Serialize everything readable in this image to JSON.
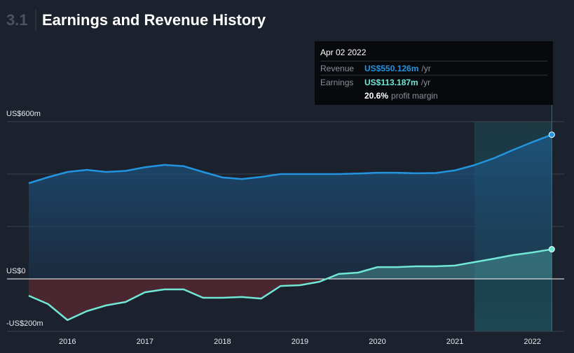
{
  "header": {
    "section": "3.1"
  },
  "chart_data": {
    "type": "line",
    "title": "Earnings and Revenue History",
    "x": [
      2015.5,
      2015.75,
      2016,
      2016.25,
      2016.5,
      2016.75,
      2017,
      2017.25,
      2017.5,
      2017.75,
      2018,
      2018.25,
      2018.5,
      2018.75,
      2019,
      2019.25,
      2019.5,
      2019.75,
      2020,
      2020.25,
      2020.5,
      2020.75,
      2021,
      2021.25,
      2021.5,
      2021.75,
      2022,
      2022.25
    ],
    "series": [
      {
        "name": "Revenue",
        "color": "#2394df",
        "values": [
          365,
          388,
          408,
          416,
          408,
          412,
          426,
          435,
          430,
          408,
          387,
          381,
          389,
          400,
          400,
          400,
          400,
          402,
          405,
          405,
          403,
          404,
          414,
          434,
          460,
          492,
          522,
          550.126
        ]
      },
      {
        "name": "Earnings",
        "color": "#71e7d6",
        "values": [
          -64,
          -96,
          -157,
          -123,
          -101,
          -88,
          -51,
          -40,
          -40,
          -72,
          -72,
          -69,
          -75,
          -27,
          -24,
          -11,
          19,
          24,
          45,
          45,
          48,
          48,
          51,
          64,
          77,
          91,
          101,
          113.187
        ]
      }
    ],
    "xlim": [
      2015.22,
      2022.41
    ],
    "xticks": [
      2016,
      2017,
      2018,
      2019,
      2020,
      2021,
      2022
    ],
    "ylim": [
      -200,
      600
    ],
    "yticks": [
      {
        "value": -200,
        "label": "-US$200m"
      },
      {
        "value": 0,
        "label": "US$0"
      },
      {
        "value": 200,
        "label": null
      },
      {
        "value": 400,
        "label": null
      },
      {
        "value": 600,
        "label": "US$600m"
      }
    ],
    "grid": true,
    "highlight_x": [
      2021.25,
      2022.25
    ],
    "tooltip": {
      "date": "Apr 02 2022",
      "values": [
        "US$550.126m",
        "US$113.187m"
      ],
      "unit": "/yr",
      "margin": "20.6%",
      "margin_label": "profit margin"
    }
  }
}
